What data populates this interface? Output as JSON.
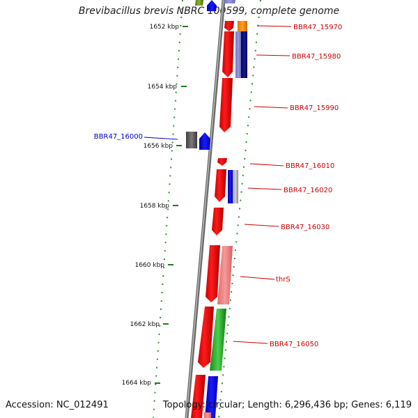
{
  "title": "Brevibacillus brevis NBRC 100599, complete genome",
  "footer": {
    "accession": "Accession: NC_012491",
    "summary": "Topology: circular; Length: 6,296,436 bp; Genes: 6,119"
  },
  "ticks": [
    {
      "label": "1652 kbp"
    },
    {
      "label": "1654 kbp"
    },
    {
      "label": "1656 kbp"
    },
    {
      "label": "1658 kbp"
    },
    {
      "label": "1660 kbp"
    },
    {
      "label": "1662 kbp"
    },
    {
      "label": "1664 kbp"
    }
  ],
  "gene_labels": [
    {
      "text": "BBR47_15970",
      "color": "#cc0000"
    },
    {
      "text": "BBR47_15980",
      "color": "#cc0000"
    },
    {
      "text": "BBR47_15990",
      "color": "#cc0000"
    },
    {
      "text": "BBR47_16000",
      "color": "#0000cc"
    },
    {
      "text": "BBR47_16010",
      "color": "#cc0000"
    },
    {
      "text": "BBR47_16020",
      "color": "#cc0000"
    },
    {
      "text": "BBR47_16030",
      "color": "#cc0000"
    },
    {
      "text": "thrS",
      "color": "#cc0000"
    },
    {
      "text": "BBR47_16050",
      "color": "#cc0000"
    }
  ],
  "colors": {
    "backbone": "#8a8a8a",
    "tick": "#1f7a1f",
    "forward_gene": "#ff0000",
    "label_line": "#cc0000"
  }
}
